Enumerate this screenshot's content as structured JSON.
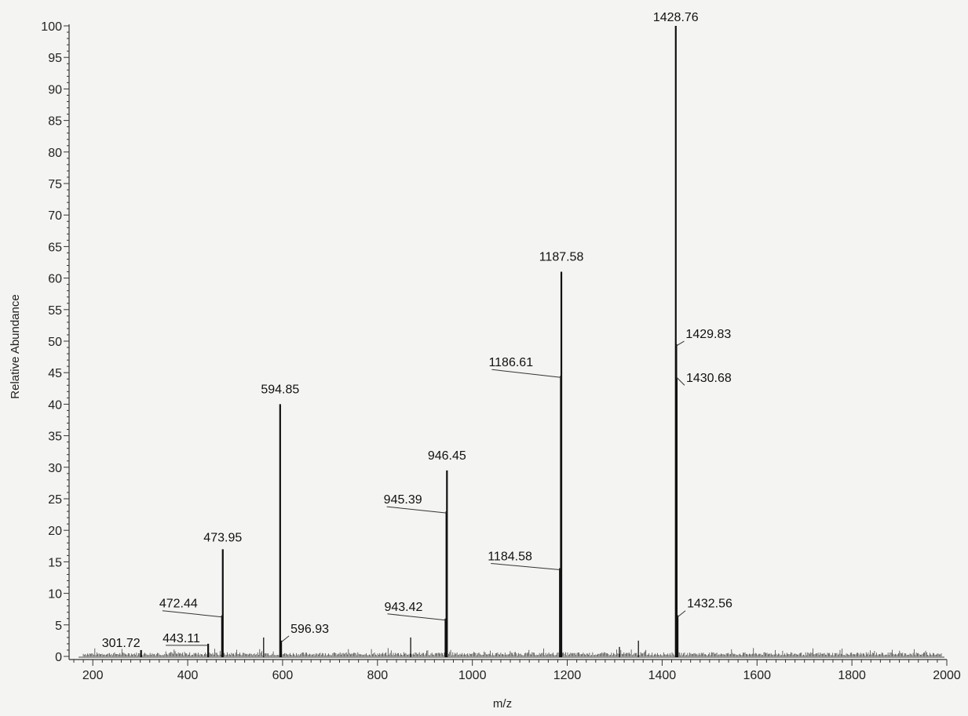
{
  "chart_data": {
    "type": "line",
    "title": "",
    "xlabel": "m/z",
    "ylabel": "Relative Abundance",
    "xlim": [
      150,
      2000
    ],
    "ylim": [
      0,
      100
    ],
    "x_ticks": [
      200,
      400,
      600,
      800,
      1000,
      1200,
      1400,
      1600,
      1800,
      2000
    ],
    "y_ticks": [
      0,
      5,
      10,
      15,
      20,
      25,
      30,
      35,
      40,
      45,
      50,
      55,
      60,
      65,
      70,
      75,
      80,
      85,
      90,
      95,
      100
    ],
    "grid": false,
    "legend": "none",
    "peaks": [
      {
        "x": 301.72,
        "y": 1.0,
        "label": "301.72"
      },
      {
        "x": 443.11,
        "y": 2.0,
        "label": "443.11"
      },
      {
        "x": 472.44,
        "y": 6.5,
        "label": "472.44"
      },
      {
        "x": 473.95,
        "y": 17.0,
        "label": "473.95"
      },
      {
        "x": 594.85,
        "y": 40.0,
        "label": "594.85"
      },
      {
        "x": 596.93,
        "y": 2.5,
        "label": "596.93"
      },
      {
        "x": 943.42,
        "y": 6.0,
        "label": "943.42"
      },
      {
        "x": 945.39,
        "y": 23.0,
        "label": "945.39"
      },
      {
        "x": 946.45,
        "y": 29.5,
        "label": "946.45"
      },
      {
        "x": 1184.58,
        "y": 14.0,
        "label": "1184.58"
      },
      {
        "x": 1186.61,
        "y": 44.5,
        "label": "1186.61"
      },
      {
        "x": 1187.58,
        "y": 61.0,
        "label": "1187.58"
      },
      {
        "x": 1428.76,
        "y": 100.0,
        "label": "1428.76"
      },
      {
        "x": 1429.83,
        "y": 49.5,
        "label": "1429.83"
      },
      {
        "x": 1430.68,
        "y": 44.0,
        "label": "1430.68"
      },
      {
        "x": 1432.56,
        "y": 6.5,
        "label": "1432.56"
      }
    ],
    "minor_peaks": [
      {
        "x": 560,
        "y": 3.0
      },
      {
        "x": 870,
        "y": 3.0
      },
      {
        "x": 1310,
        "y": 1.5
      },
      {
        "x": 1350,
        "y": 2.5
      }
    ]
  }
}
